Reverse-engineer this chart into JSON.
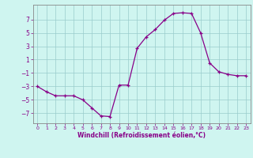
{
  "x": [
    0,
    1,
    2,
    3,
    4,
    5,
    6,
    7,
    8,
    9,
    10,
    11,
    12,
    13,
    14,
    15,
    16,
    17,
    18,
    19,
    20,
    21,
    22,
    23
  ],
  "y": [
    -3,
    -3.8,
    -4.4,
    -4.4,
    -4.4,
    -5.0,
    -6.2,
    -7.4,
    -7.5,
    -2.8,
    -2.8,
    2.7,
    4.4,
    5.5,
    6.9,
    7.9,
    8.0,
    7.9,
    5.0,
    0.5,
    -0.8,
    -1.2,
    -1.4,
    -1.4
  ],
  "line_color": "#880088",
  "marker": "+",
  "bg_color": "#cff5f0",
  "grid_color": "#99cccc",
  "xlabel": "Windchill (Refroidissement éolien,°C)",
  "xlabel_color": "#880088",
  "tick_color": "#880088",
  "spine_color": "#888888",
  "yticks": [
    -7,
    -5,
    -3,
    -1,
    1,
    3,
    5,
    7
  ],
  "xticks": [
    0,
    1,
    2,
    3,
    4,
    5,
    6,
    7,
    8,
    9,
    10,
    11,
    12,
    13,
    14,
    15,
    16,
    17,
    18,
    19,
    20,
    21,
    22,
    23
  ],
  "xlim": [
    -0.5,
    23.5
  ],
  "ylim": [
    -8.5,
    9.2
  ],
  "figsize": [
    3.2,
    2.0
  ],
  "dpi": 100
}
